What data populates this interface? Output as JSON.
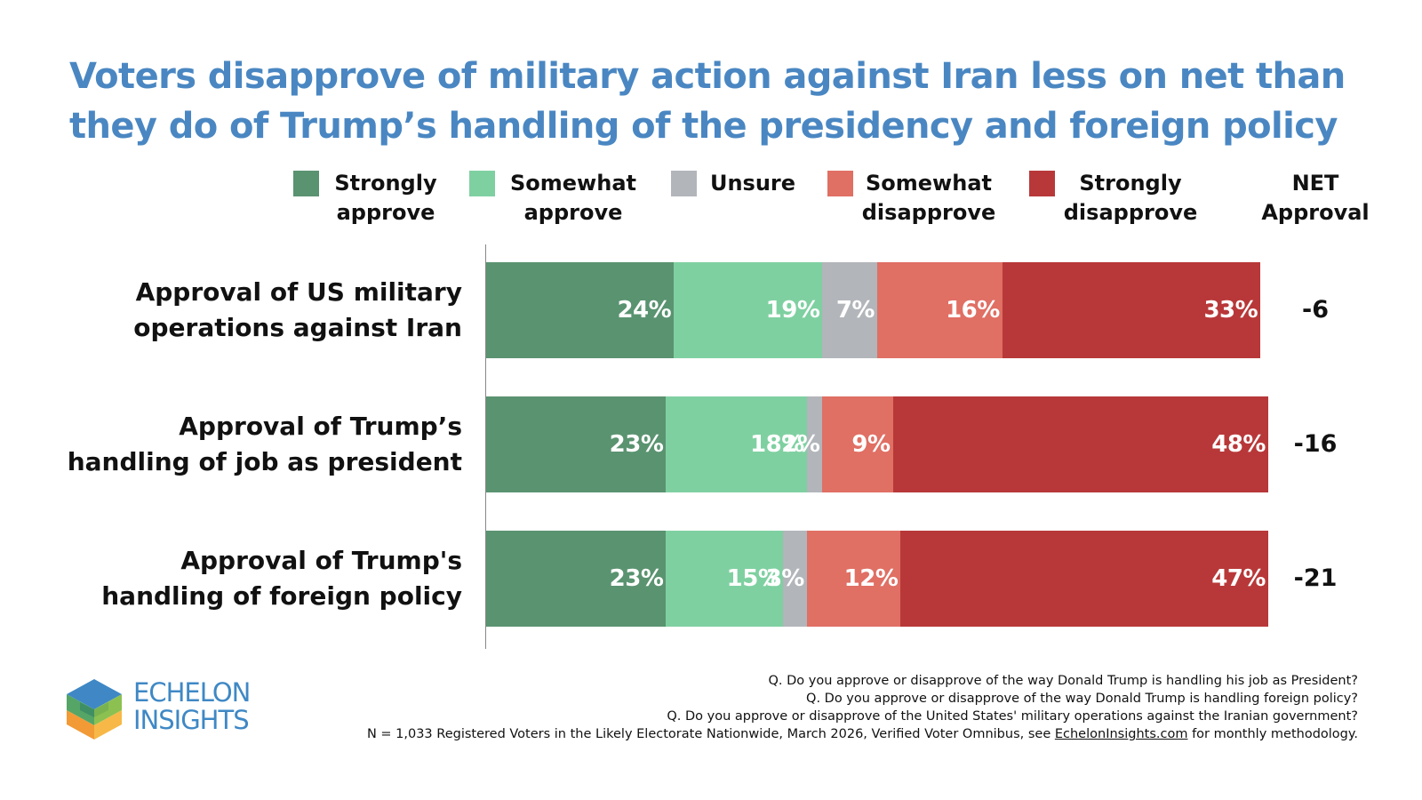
{
  "title": {
    "line1": "Voters disapprove of military action against Iran less on net than",
    "line2": "they do of Trump’s handling of the presidency and foreign policy"
  },
  "colors": {
    "title": "#4a87c2",
    "strongly_approve": "#5a9370",
    "somewhat_approve": "#7fd0a1",
    "unsure": "#b2b5ba",
    "somewhat_disapprove": "#e06f64",
    "strongly_disapprove": "#b83839"
  },
  "chart_data": {
    "type": "bar",
    "orientation": "horizontal",
    "stacked": true,
    "categories": [
      "Approval of US military\noperations against Iran",
      "Approval of Trump’s\nhandling of job as president",
      "Approval of Trump's\nhandling of foreign policy"
    ],
    "series": [
      {
        "name": "Strongly\napprove",
        "key": "strongly_approve",
        "values": [
          24,
          23,
          23
        ],
        "labels": [
          "24%",
          "23%",
          "23%"
        ]
      },
      {
        "name": "Somewhat\napprove",
        "key": "somewhat_approve",
        "values": [
          19,
          18,
          15
        ],
        "labels": [
          "19%",
          "18%",
          "15%"
        ]
      },
      {
        "name": "Unsure",
        "key": "unsure",
        "values": [
          7,
          2,
          3
        ],
        "labels": [
          "7%",
          "2%",
          "3%"
        ]
      },
      {
        "name": "Somewhat\ndisapprove",
        "key": "somewhat_disapprove",
        "values": [
          16,
          9,
          12
        ],
        "labels": [
          "16%",
          "9%",
          "12%"
        ]
      },
      {
        "name": "Strongly\ndisapprove",
        "key": "strongly_disapprove",
        "values": [
          33,
          48,
          47
        ],
        "labels": [
          "33%",
          "48%",
          "47%"
        ]
      }
    ],
    "net_header": "NET\nApproval",
    "net_values": [
      "-6",
      "-16",
      "-21"
    ],
    "xlim": [
      0,
      100
    ],
    "legend_position": "top"
  },
  "logo": {
    "text": "ECHELON\nINSIGHTS"
  },
  "footnotes": {
    "line1": "Q. Do you approve or disapprove of the way Donald Trump is handling his job as President?",
    "line2": "Q. Do you approve or disapprove of the way Donald Trump is handling foreign policy?",
    "line3": "Q. Do you approve or disapprove of the United States' military operations against the Iranian government?",
    "line4_pre": "N = 1,033 Registered Voters in the Likely Electorate Nationwide, March 2026, Verified Voter Omnibus, see ",
    "line4_link": "EchelonInsights.com",
    "line4_post": " for monthly methodology."
  }
}
